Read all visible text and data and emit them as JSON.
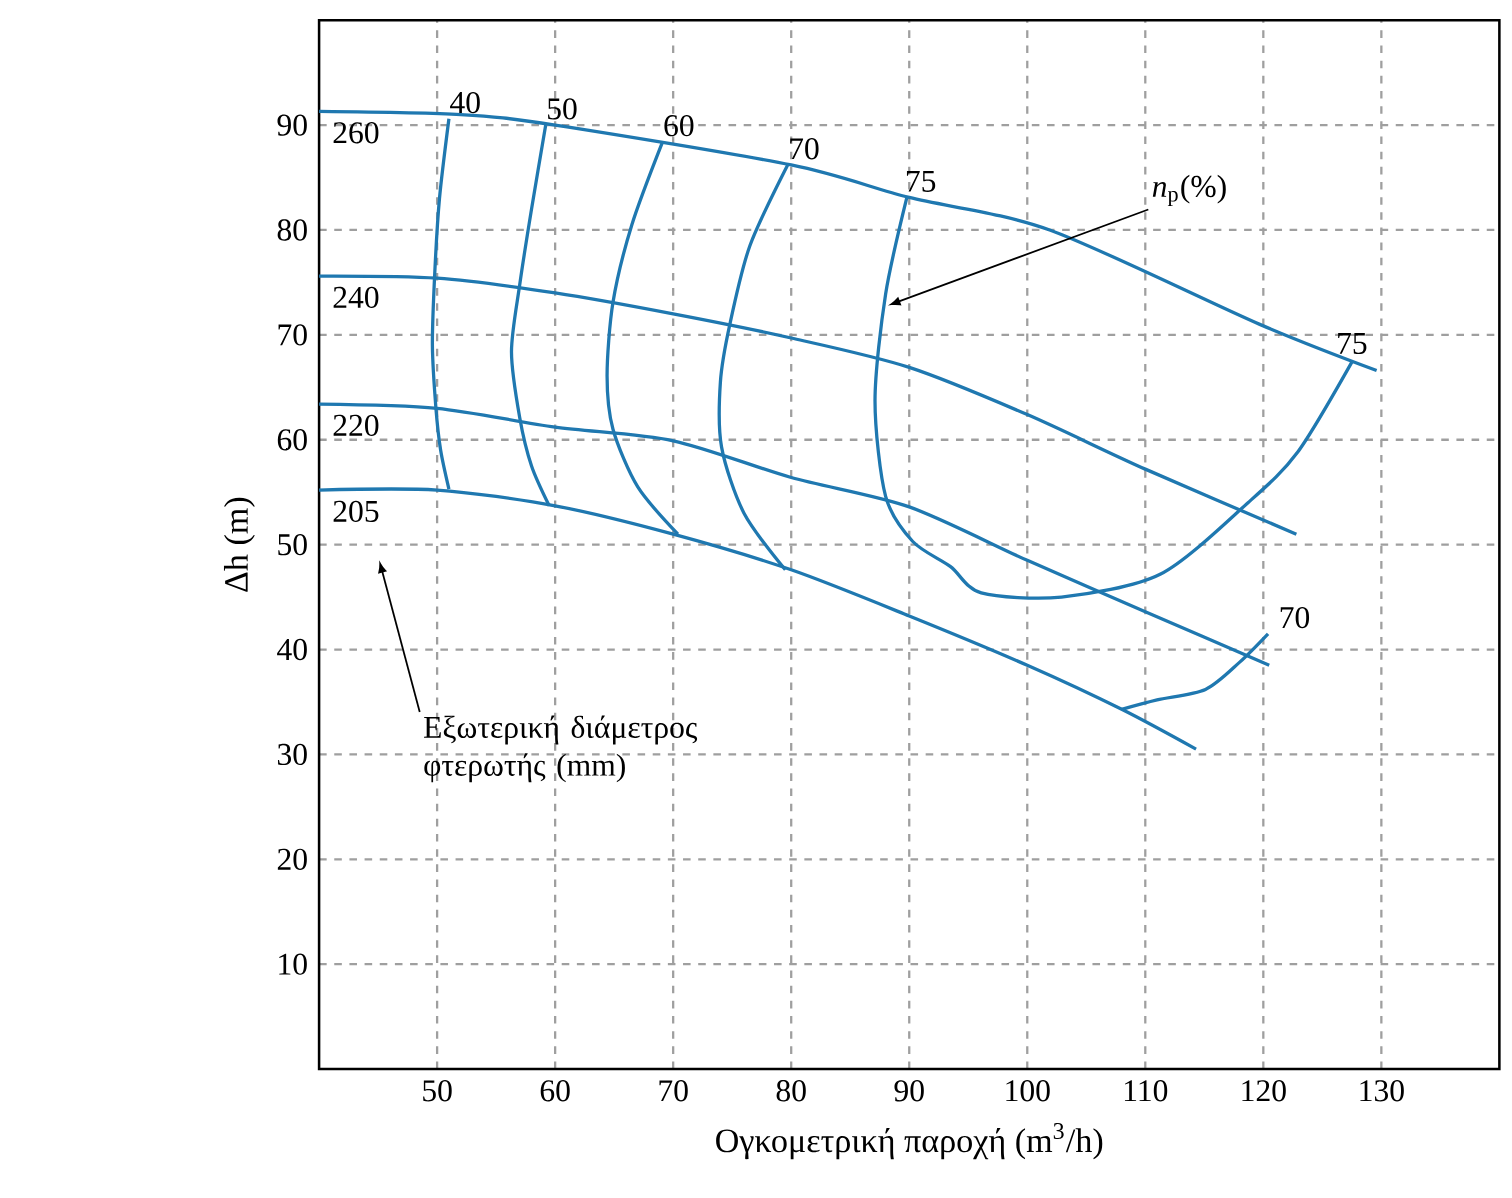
{
  "chart_data": {
    "type": "line",
    "xlabel": "Ογκομετρική παροχή (m$^{3}$/h)",
    "ylabel": "Δh (m)",
    "xlim": [
      40,
      140
    ],
    "ylim": [
      0,
      100
    ],
    "xticks": [
      50,
      60,
      70,
      80,
      90,
      100,
      110,
      120,
      130
    ],
    "yticks": [
      10,
      20,
      30,
      40,
      50,
      60,
      70,
      80,
      90
    ],
    "grid": true,
    "series": [
      {
        "name": "260",
        "color": "#1f78b0",
        "x": [
          40,
          52,
          60,
          80,
          90,
          101.9,
          119.7,
          129.6
        ],
        "values": [
          91.3,
          91,
          90,
          86.2,
          83.1,
          80,
          71,
          66.6
        ]
      },
      {
        "name": "240",
        "color": "#1f78b0",
        "x": [
          40,
          50,
          60,
          70,
          80,
          90,
          100,
          110,
          122.8
        ],
        "values": [
          75.6,
          75.4,
          74,
          72,
          69.7,
          66.9,
          62.4,
          57.2,
          51
        ]
      },
      {
        "name": "220",
        "color": "#1f78b0",
        "x": [
          40,
          50,
          60,
          70,
          80,
          90,
          100,
          110,
          120.5
        ],
        "values": [
          63.4,
          63,
          61.2,
          59.9,
          56.4,
          53.6,
          48.5,
          43.6,
          38.5
        ]
      },
      {
        "name": "205",
        "color": "#1f78b0",
        "x": [
          40,
          50,
          60,
          70,
          80,
          90,
          100,
          108,
          114.3
        ],
        "values": [
          55.2,
          55.2,
          53.7,
          51,
          47.6,
          43.2,
          38.5,
          34.3,
          30.5
        ]
      },
      {
        "name": "40",
        "color": "#1f78b0",
        "x": [
          51,
          50.2,
          49.8,
          49.6,
          49.9,
          50.3,
          51
        ],
        "values": [
          90.6,
          83,
          75.9,
          69,
          63,
          59,
          55.3
        ]
      },
      {
        "name": "50",
        "color": "#1f78b0",
        "x": [
          59.2,
          58,
          57,
          56.3,
          57,
          58,
          59.5
        ],
        "values": [
          90,
          82,
          74.8,
          68.4,
          62.1,
          57.5,
          53.7
        ]
      },
      {
        "name": "60",
        "color": "#1f78b0",
        "x": [
          69.1,
          66.5,
          64.9,
          64.4,
          64.9,
          67,
          70.4
        ],
        "values": [
          88.4,
          80.5,
          73.1,
          66.1,
          61,
          55.5,
          51
        ]
      },
      {
        "name": "70",
        "color": "#1f78b0",
        "x": [
          79.7,
          76.5,
          74.8,
          74,
          74.1,
          76,
          79.5
        ],
        "values": [
          86.2,
          78.5,
          71,
          65.5,
          59.3,
          53,
          47.6
        ]
      },
      {
        "name": "75",
        "color": "#1f78b0",
        "x": [
          89.8,
          88,
          87.1,
          88,
          90.3,
          93.5,
          96.1,
          102.9,
          111.3,
          118.7,
          122.9,
          127.5
        ],
        "values": [
          83.1,
          73.9,
          63.7,
          54.6,
          50.3,
          47.9,
          45.4,
          45,
          47.2,
          54,
          58.8,
          67.4
        ]
      },
      {
        "name": "70",
        "color": "#1f78b0",
        "x": [
          108,
          111,
          115.1,
          118,
          120.4
        ],
        "values": [
          34.3,
          35.2,
          36.2,
          38.8,
          41.5
        ]
      }
    ],
    "annotations": [
      {
        "text": "*n*$_{p}$(%)",
        "x": 88.2,
        "y": 72.8
      },
      "Εξωτερική διάμετρος φτερωτής (mm)"
    ]
  }
}
